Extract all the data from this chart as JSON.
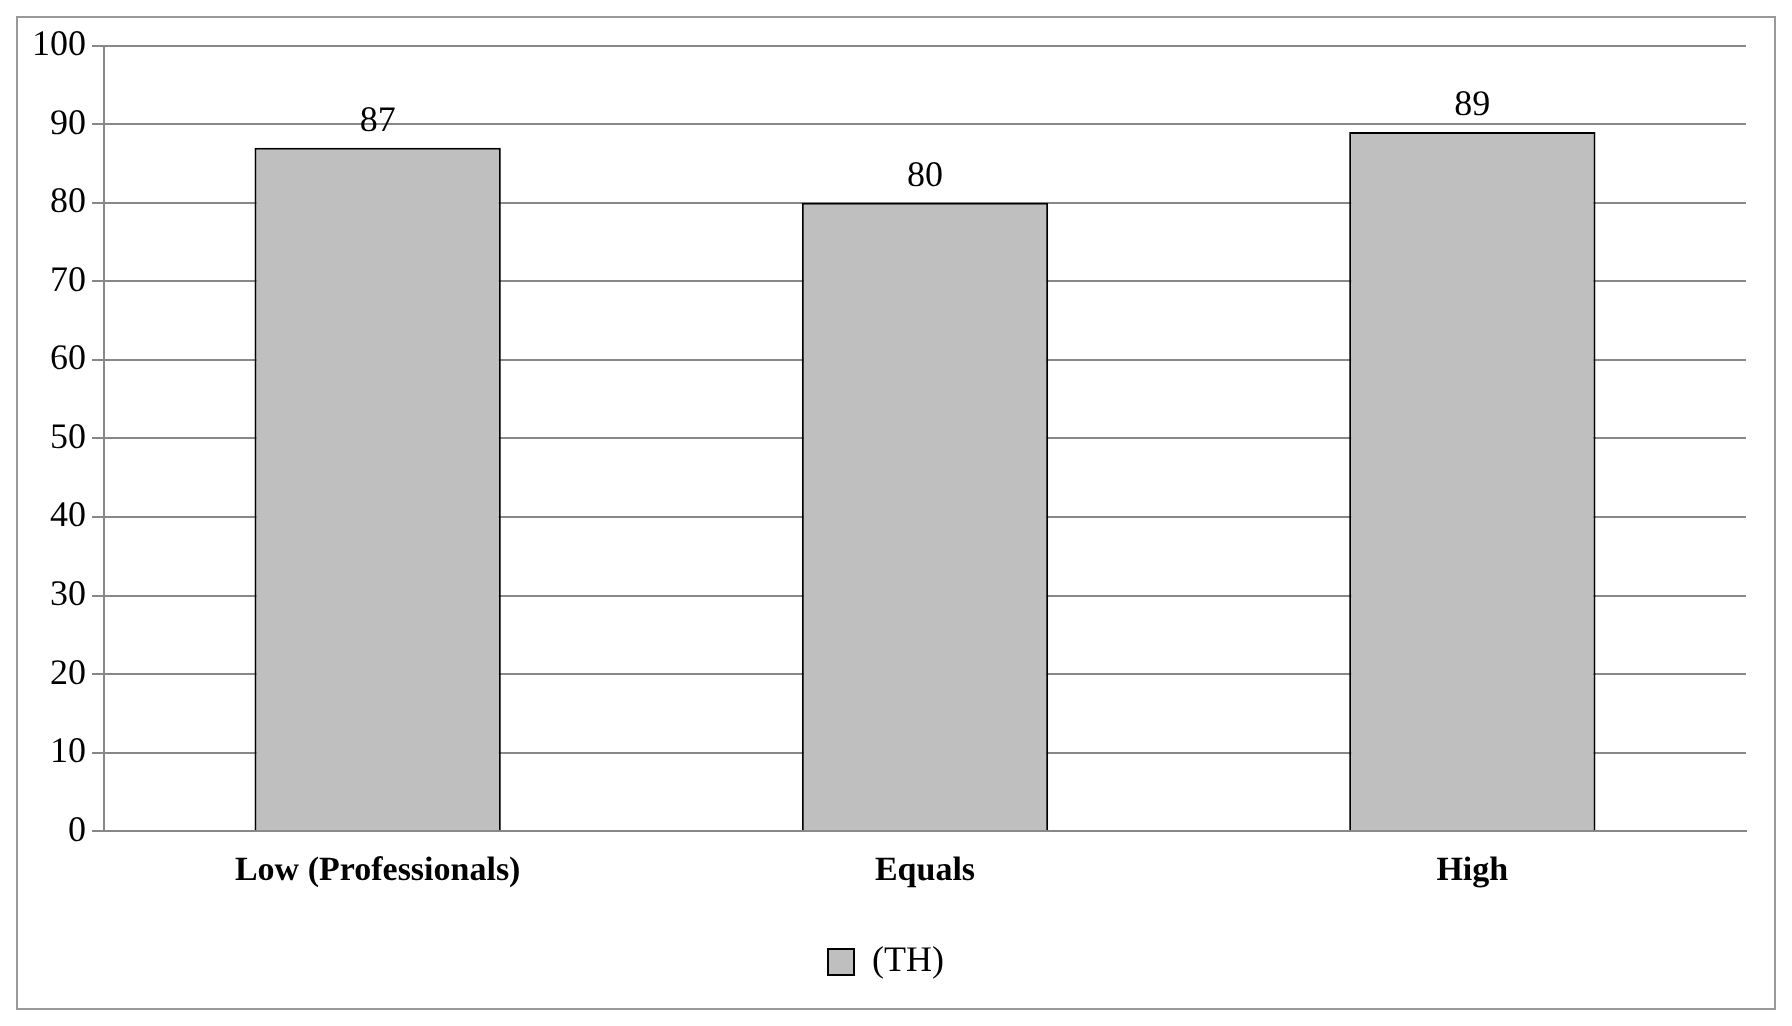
{
  "chart_data": {
    "type": "bar",
    "categories": [
      "Low (Professionals)",
      "Equals",
      "High"
    ],
    "series": [
      {
        "name": "(TH)",
        "color": "#bfbfbf",
        "values": [
          87,
          80,
          89
        ]
      }
    ],
    "ylim": [
      0,
      100
    ],
    "yticks": [
      0,
      10,
      20,
      30,
      40,
      50,
      60,
      70,
      80,
      90,
      100
    ],
    "grid": "y",
    "legend": "bottom",
    "data_labels": true
  }
}
